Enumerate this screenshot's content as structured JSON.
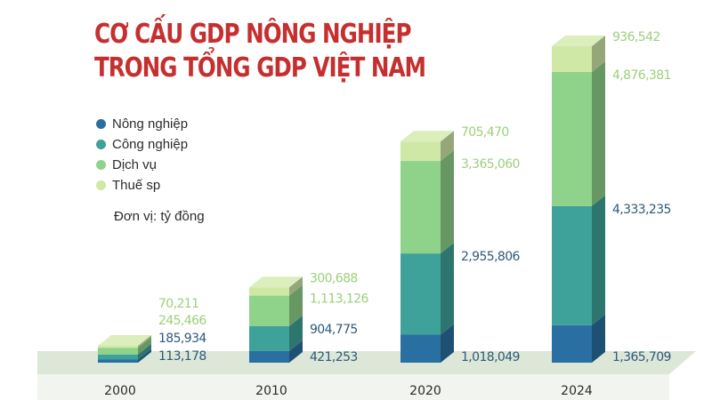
{
  "title_lines": [
    "CƠ CẤU GDP NÔNG NGHIỆP",
    "TRONG TỔNG GDP VIỆT NAM"
  ],
  "unit_label": "Đơn vị: tỷ đồng",
  "colors": {
    "nong_nghiep": "#2a6fa1",
    "cong_nghiep": "#3ea29a",
    "dich_vu": "#8fd38a",
    "thue_sp": "#cfe8a6",
    "title": "#c62f2f",
    "label_dark": "#2c5a7a",
    "label_light": "#9ccf7a",
    "floor": "#dde7d8"
  },
  "chart_data": {
    "type": "bar",
    "stacked": true,
    "categories": [
      "2000",
      "2010",
      "2020",
      "2024"
    ],
    "series": [
      {
        "name": "Nông nghiệp",
        "values": [
          113178,
          421253,
          1018049,
          1365709
        ]
      },
      {
        "name": "Công nghiệp",
        "values": [
          185934,
          904775,
          2955806,
          4333235
        ]
      },
      {
        "name": "Dịch vụ",
        "values": [
          245466,
          1113126,
          3365060,
          4876381
        ]
      },
      {
        "name": "Thuế sp",
        "values": [
          70211,
          300688,
          705470,
          936542
        ]
      }
    ],
    "value_labels": [
      [
        "113,178",
        "185,934",
        "245,466",
        "70,211"
      ],
      [
        "421,253",
        "904,775",
        "1,113,126",
        "300,688"
      ],
      [
        "1,018,049",
        "2,955,806",
        "3,365,060",
        "705,470"
      ],
      [
        "1,365,709",
        "4,333,235",
        "4,876,381",
        "936,542"
      ]
    ],
    "legend_position": "left"
  }
}
